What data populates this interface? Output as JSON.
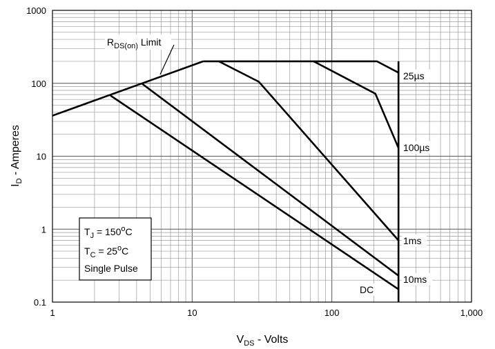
{
  "chart_data": {
    "type": "line",
    "title": "",
    "xlabel": {
      "main": "V",
      "sub": "DS",
      "rest": " - Volts"
    },
    "ylabel": {
      "main": "I",
      "sub": "D",
      "rest": " - Amperes"
    },
    "x_scale": "log",
    "y_scale": "log",
    "xlim": [
      1,
      1000
    ],
    "ylim": [
      0.1,
      1000
    ],
    "grid": true,
    "x_ticks": [
      1,
      10,
      100,
      1000
    ],
    "x_tick_labels": [
      "1",
      "10",
      "100",
      "1,000"
    ],
    "y_ticks": [
      0.1,
      1,
      10,
      100,
      1000
    ],
    "y_tick_labels": [
      "0.1",
      "1",
      "10",
      "100",
      "1000"
    ],
    "series": [
      {
        "name": "RDS(on) Limit",
        "x": [
          1,
          12
        ],
        "y": [
          36,
          200
        ]
      },
      {
        "name": "25µs",
        "x": [
          12,
          210,
          300
        ],
        "y": [
          200,
          200,
          140
        ]
      },
      {
        "name": "100µs",
        "x": [
          74,
          205,
          300
        ],
        "y": [
          200,
          72,
          13
        ]
      },
      {
        "name": "1ms",
        "x": [
          15.5,
          30,
          300
        ],
        "y": [
          200,
          105,
          0.7
        ]
      },
      {
        "name": "10ms",
        "x": [
          4.4,
          300
        ],
        "y": [
          98,
          0.23
        ]
      },
      {
        "name": "DC",
        "x": [
          2.6,
          300
        ],
        "y": [
          68,
          0.15
        ]
      },
      {
        "name": "",
        "x": [
          300,
          300
        ],
        "y": [
          200,
          0.1
        ]
      }
    ],
    "annotations": {
      "rds_limit": {
        "main": "R",
        "sub": "DS(on)",
        "rest": " Limit"
      },
      "pulse_labels": [
        "25µs",
        "100µs",
        "1ms",
        "10ms",
        "DC"
      ],
      "conditions": [
        {
          "main": "T",
          "sub": "J",
          "rest": " = 150",
          "sup": "o",
          "tail": "C"
        },
        {
          "main": "T",
          "sub": "C",
          "rest": " = 25",
          "sup": "o",
          "tail": "C"
        },
        {
          "main": "Single Pulse",
          "sub": "",
          "rest": "",
          "sup": "",
          "tail": ""
        }
      ]
    }
  }
}
